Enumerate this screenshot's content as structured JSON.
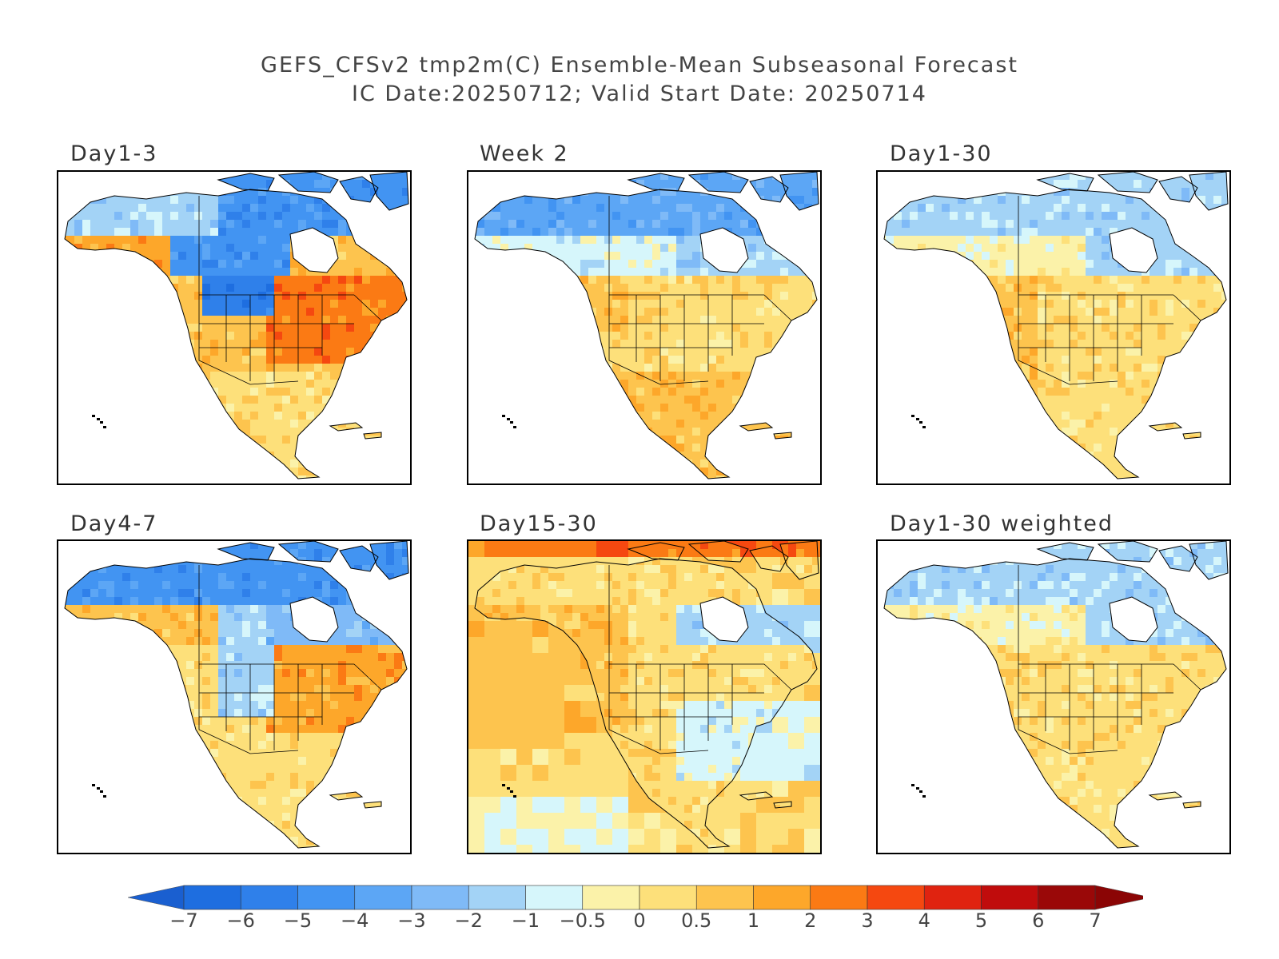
{
  "title_line1": "GEFS_CFSv2 tmp2m(C) Ensemble-Mean Subseasonal Forecast",
  "title_line2": "IC Date:20250712; Valid Start Date: 20250714",
  "panels": [
    {
      "label": "Day1-3",
      "pattern": "day1_3"
    },
    {
      "label": "Week 2",
      "pattern": "week2"
    },
    {
      "label": "Day1-30",
      "pattern": "day1_30"
    },
    {
      "label": "Day4-7",
      "pattern": "day4_7"
    },
    {
      "label": "Day15-30",
      "pattern": "day15_30"
    },
    {
      "label": "Day1-30 weighted",
      "pattern": "day1_30w"
    }
  ],
  "colorbar": {
    "ticks": [
      "-7",
      "-6",
      "-5",
      "-4",
      "-3",
      "-2",
      "-1",
      "-0.5",
      "0",
      "0.5",
      "1",
      "2",
      "3",
      "4",
      "5",
      "6",
      "7"
    ],
    "colors": [
      "#1e6ee0",
      "#2f80ea",
      "#4294f2",
      "#5ca6f5",
      "#7fbaf7",
      "#a3d3f6",
      "#d6f6fb",
      "#fbf2a9",
      "#fde07a",
      "#fdc44e",
      "#fda72a",
      "#fb7a14",
      "#f54810",
      "#e02310",
      "#c00c0c",
      "#9a0808"
    ],
    "low_arrow": "#1a5fd0",
    "high_arrow": "#8b0505"
  }
}
